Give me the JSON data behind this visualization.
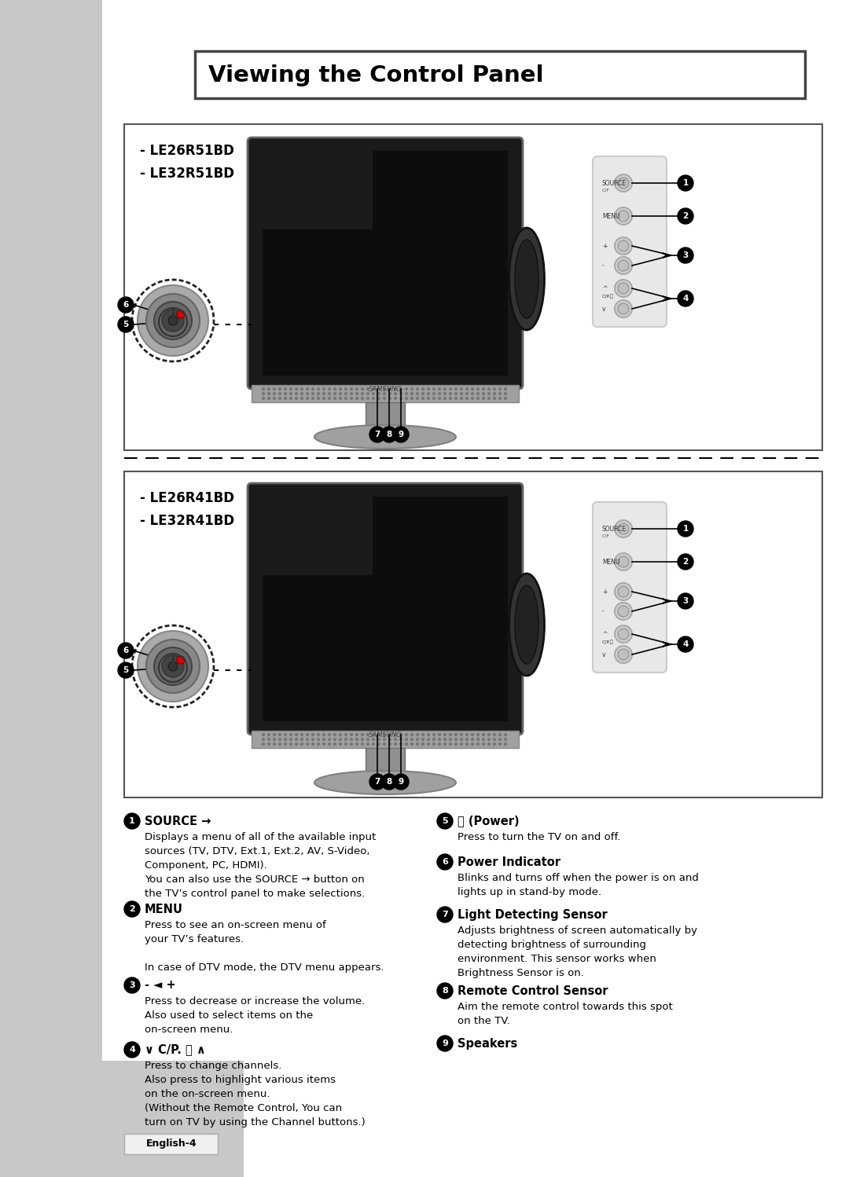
{
  "title": "Viewing the Control Panel",
  "page_label": "English-4",
  "bg_color": "#ffffff",
  "sidebar_color": "#c8c8c8",
  "title_box_border": "#444444",
  "diagram_box_border": "#555555",
  "model_top": "- LE26R51BD\n- LE32R51BD",
  "model_bottom": "- LE26R41BD\n- LE32R41BD",
  "descriptions": [
    {
      "num": "1",
      "head": "SOURCE",
      "head_extra": "→",
      "body": "Displays a menu of all of the available input\nsources (TV, DTV, Ext.1, Ext.2, AV, S-Video,\nComponent, PC, HDMI).\nYou can also use the SOURCE → button on\nthe TV’s control panel to make selections."
    },
    {
      "num": "2",
      "head": "MENU",
      "head_extra": "",
      "body": "Press to see an on-screen menu of\nyour TV’s features.\n\nIn case of DTV mode, the DTV menu appears."
    },
    {
      "num": "3",
      "head": "- ◄ +",
      "head_extra": "",
      "body": "Press to decrease or increase the volume.\nAlso used to select items on the\non-screen menu."
    },
    {
      "num": "4",
      "head": "∨ C/P. ⏻ ∧",
      "head_extra": "",
      "body": "Press to change channels.\nAlso press to highlight various items\non the on-screen menu.\n(Without the Remote Control, You can\nturn on TV by using the Channel buttons.)"
    },
    {
      "num": "5",
      "head": "⏻ (Power)",
      "head_extra": "",
      "body": "Press to turn the TV on and off."
    },
    {
      "num": "6",
      "head": "Power Indicator",
      "head_extra": "",
      "body": "Blinks and turns off when the power is on and\nlights up in stand-by mode."
    },
    {
      "num": "7",
      "head": "Light Detecting Sensor",
      "head_extra": "",
      "body": "Adjusts brightness of screen automatically by\ndetecting brightness of surrounding\nenvironment. This sensor works when\nBrightness Sensor is on."
    },
    {
      "num": "8",
      "head": "Remote Control Sensor",
      "head_extra": "",
      "body": "Aim the remote control towards this spot\non the TV."
    },
    {
      "num": "9",
      "head": "Speakers",
      "head_extra": "",
      "body": ""
    }
  ]
}
